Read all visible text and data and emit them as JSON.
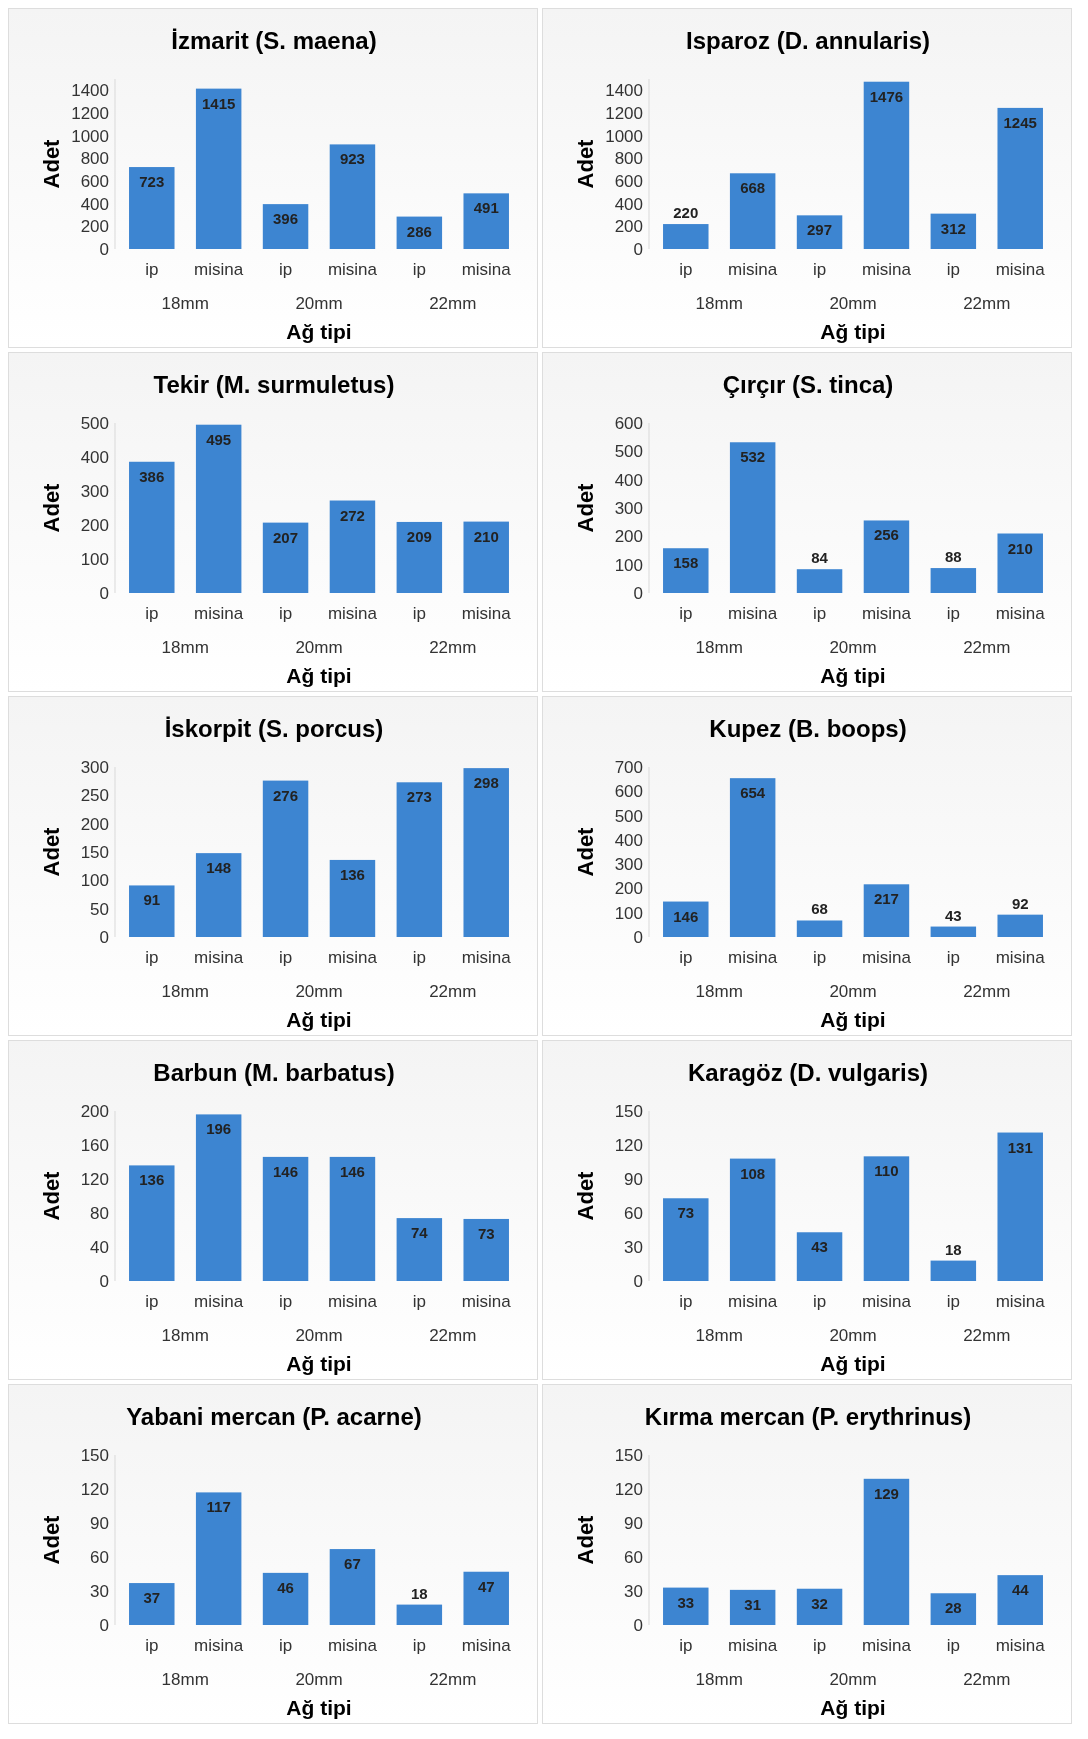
{
  "chart_data": [
    {
      "type": "bar",
      "title": "İzmarit (S. maena)",
      "ylabel": "Adet",
      "xlabel": "Ağ tipi",
      "categories": [
        "ip",
        "misina",
        "ip",
        "misina",
        "ip",
        "misina"
      ],
      "annotations": [
        "18mm",
        "20mm",
        "22mm"
      ],
      "values": [
        723,
        1415,
        396,
        923,
        286,
        491
      ],
      "color": "#3d85d1",
      "ylim": [
        0,
        1500
      ],
      "yticks": [
        0,
        200,
        400,
        600,
        800,
        1000,
        1200,
        1400
      ],
      "data_labels": true
    },
    {
      "type": "bar",
      "title": "Isparoz (D. annularis)",
      "ylabel": "Adet",
      "xlabel": "Ağ tipi",
      "categories": [
        "ip",
        "misina",
        "ip",
        "misina",
        "ip",
        "misina"
      ],
      "annotations": [
        "18mm",
        "20mm",
        "22mm"
      ],
      "values": [
        220,
        668,
        297,
        1476,
        312,
        1245
      ],
      "color": "#3d85d1",
      "ylim": [
        0,
        1500
      ],
      "yticks": [
        0,
        200,
        400,
        600,
        800,
        1000,
        1200,
        1400
      ],
      "data_labels": true
    },
    {
      "type": "bar",
      "title": "Tekir (M. surmuletus)",
      "ylabel": "Adet",
      "xlabel": "Ağ tipi",
      "categories": [
        "ip",
        "misina",
        "ip",
        "misina",
        "ip",
        "misina"
      ],
      "annotations": [
        "18mm",
        "20mm",
        "22mm"
      ],
      "values": [
        386,
        495,
        207,
        272,
        209,
        210
      ],
      "color": "#3d85d1",
      "ylim": [
        0,
        500
      ],
      "yticks": [
        0,
        100,
        200,
        300,
        400,
        500
      ],
      "data_labels": true
    },
    {
      "type": "bar",
      "title": "Çırçır (S. tinca)",
      "ylabel": "Adet",
      "xlabel": "Ağ tipi",
      "categories": [
        "ip",
        "misina",
        "ip",
        "misina",
        "ip",
        "misina"
      ],
      "annotations": [
        "18mm",
        "20mm",
        "22mm"
      ],
      "values": [
        158,
        532,
        84,
        256,
        88,
        210
      ],
      "color": "#3d85d1",
      "ylim": [
        0,
        600
      ],
      "yticks": [
        0,
        100,
        200,
        300,
        400,
        500,
        600
      ],
      "data_labels": true
    },
    {
      "type": "bar",
      "title": "İskorpit (S. porcus)",
      "ylabel": "Adet",
      "xlabel": "Ağ tipi",
      "categories": [
        "ip",
        "misina",
        "ip",
        "misina",
        "ip",
        "misina"
      ],
      "annotations": [
        "18mm",
        "20mm",
        "22mm"
      ],
      "values": [
        91,
        148,
        276,
        136,
        273,
        298
      ],
      "color": "#3d85d1",
      "ylim": [
        0,
        300
      ],
      "yticks": [
        0,
        50,
        100,
        150,
        200,
        250,
        300
      ],
      "data_labels": true
    },
    {
      "type": "bar",
      "title": "Kupez (B. boops)",
      "ylabel": "Adet",
      "xlabel": "Ağ tipi",
      "categories": [
        "ip",
        "misina",
        "ip",
        "misina",
        "ip",
        "misina"
      ],
      "annotations": [
        "18mm",
        "20mm",
        "22mm"
      ],
      "values": [
        146,
        654,
        68,
        217,
        43,
        92
      ],
      "color": "#3d85d1",
      "ylim": [
        0,
        700
      ],
      "yticks": [
        0,
        100,
        200,
        300,
        400,
        500,
        600,
        700
      ],
      "data_labels": true
    },
    {
      "type": "bar",
      "title": "Barbun (M. barbatus)",
      "ylabel": "Adet",
      "xlabel": "Ağ tipi",
      "categories": [
        "ip",
        "misina",
        "ip",
        "misina",
        "ip",
        "misina"
      ],
      "annotations": [
        "18mm",
        "20mm",
        "22mm"
      ],
      "values": [
        136,
        196,
        146,
        146,
        74,
        73
      ],
      "color": "#3d85d1",
      "ylim": [
        0,
        200
      ],
      "yticks": [
        0,
        40,
        80,
        120,
        160,
        200
      ],
      "data_labels": true
    },
    {
      "type": "bar",
      "title": "Karagöz (D. vulgaris)",
      "ylabel": "Adet",
      "xlabel": "Ağ tipi",
      "categories": [
        "ip",
        "misina",
        "ip",
        "misina",
        "ip",
        "misina"
      ],
      "annotations": [
        "18mm",
        "20mm",
        "22mm"
      ],
      "values": [
        73,
        108,
        43,
        110,
        18,
        131
      ],
      "color": "#3d85d1",
      "ylim": [
        0,
        150
      ],
      "yticks": [
        0,
        30,
        60,
        90,
        120,
        150
      ],
      "data_labels": true
    },
    {
      "type": "bar",
      "title": "Yabani mercan (P. acarne)",
      "ylabel": "Adet",
      "xlabel": "Ağ tipi",
      "categories": [
        "ip",
        "misina",
        "ip",
        "misina",
        "ip",
        "misina"
      ],
      "annotations": [
        "18mm",
        "20mm",
        "22mm"
      ],
      "values": [
        37,
        117,
        46,
        67,
        18,
        47
      ],
      "color": "#3d85d1",
      "ylim": [
        0,
        150
      ],
      "yticks": [
        0,
        30,
        60,
        90,
        120,
        150
      ],
      "data_labels": true
    },
    {
      "type": "bar",
      "title": "Kırma mercan (P. erythrinus)",
      "ylabel": "Adet",
      "xlabel": "Ağ tipi",
      "categories": [
        "ip",
        "misina",
        "ip",
        "misina",
        "ip",
        "misina"
      ],
      "annotations": [
        "18mm",
        "20mm",
        "22mm"
      ],
      "values": [
        33,
        31,
        32,
        129,
        28,
        44
      ],
      "color": "#3d85d1",
      "ylim": [
        0,
        150
      ],
      "yticks": [
        0,
        30,
        60,
        90,
        120,
        150
      ],
      "data_labels": true
    }
  ]
}
